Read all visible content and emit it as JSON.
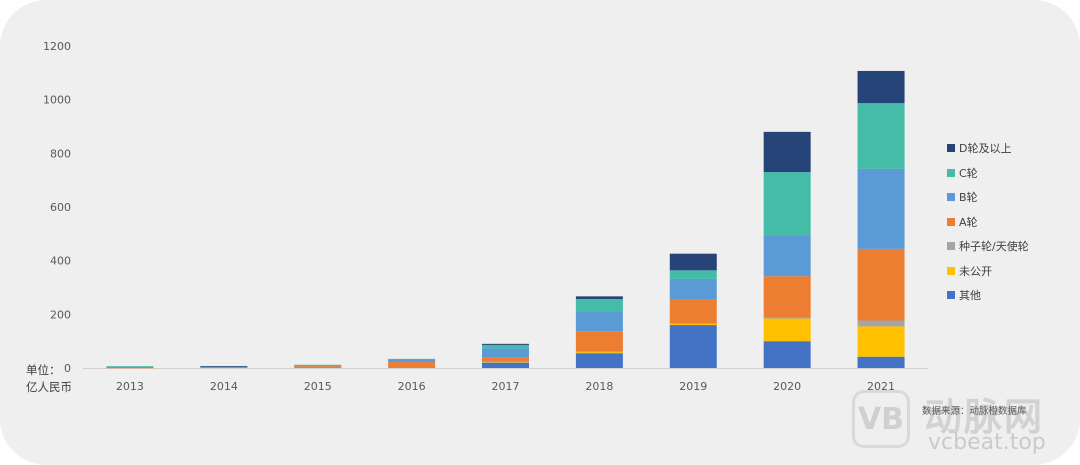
{
  "unit_label": {
    "line1": "单位：",
    "line2": "亿人民币"
  },
  "source": "数据来源：动脉橙数据库",
  "watermark": {
    "logo_text": "VB",
    "title": "动脉网",
    "url": "vcbeat.top"
  },
  "chart_data": {
    "type": "bar",
    "stacked": true,
    "categories": [
      "2013",
      "2014",
      "2015",
      "2016",
      "2017",
      "2018",
      "2019",
      "2020",
      "2021"
    ],
    "ylim": [
      0,
      1200
    ],
    "yticks": [
      0,
      200,
      400,
      600,
      800,
      1000,
      1200
    ],
    "legend_position": "right",
    "grid": false,
    "series": [
      {
        "name": "其他",
        "color": "#4472c4",
        "values": [
          0,
          0,
          0,
          0,
          20,
          55,
          160,
          100,
          42
        ]
      },
      {
        "name": "未公开",
        "color": "#ffc000",
        "values": [
          0,
          0,
          0,
          0,
          2,
          5,
          5,
          85,
          113
        ]
      },
      {
        "name": "种子轮/天使轮",
        "color": "#a5a5a5",
        "values": [
          0,
          0,
          0,
          0,
          1,
          2,
          2,
          2,
          22
        ]
      },
      {
        "name": "A轮",
        "color": "#ed7d31",
        "values": [
          2,
          3,
          7,
          22,
          15,
          75,
          90,
          155,
          267
        ]
      },
      {
        "name": "B轮",
        "color": "#5b9bd5",
        "values": [
          2,
          1,
          3,
          10,
          35,
          75,
          75,
          150,
          298
        ]
      },
      {
        "name": "C轮",
        "color": "#44bca8",
        "values": [
          3,
          1,
          2,
          2,
          13,
          45,
          32,
          238,
          245
        ]
      },
      {
        "name": "D轮及以上",
        "color": "#264478",
        "values": [
          0,
          2,
          0,
          0,
          4,
          10,
          62,
          150,
          120
        ]
      }
    ]
  }
}
